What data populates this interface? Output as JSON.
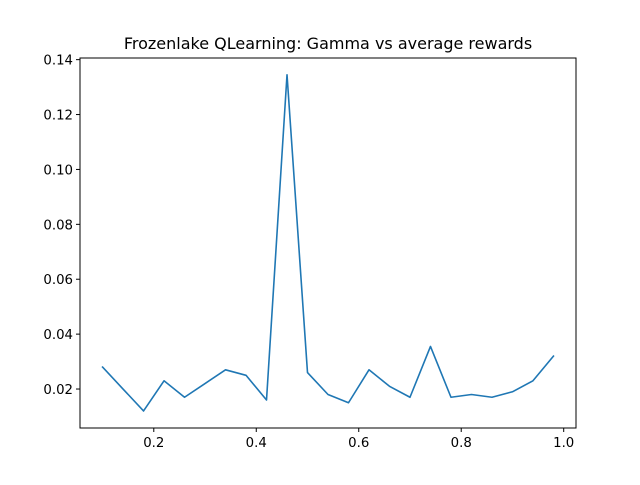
{
  "chart_data": {
    "type": "line",
    "title": "Frozenlake QLearning: Gamma vs average rewards",
    "xlabel": "",
    "ylabel": "",
    "xlim": [
      0.056,
      1.024
    ],
    "ylim": [
      0.0058,
      0.1406
    ],
    "xticks": [
      0.2,
      0.4,
      0.6,
      0.8,
      1.0
    ],
    "xtick_labels": [
      "0.2",
      "0.4",
      "0.6",
      "0.8",
      "1.0"
    ],
    "yticks": [
      0.02,
      0.04,
      0.06,
      0.08,
      0.1,
      0.12,
      0.14
    ],
    "ytick_labels": [
      "0.02",
      "0.04",
      "0.06",
      "0.08",
      "0.10",
      "0.12",
      "0.14"
    ],
    "grid": false,
    "series": [
      {
        "color": "#1f77b4",
        "x": [
          0.1,
          0.14,
          0.18,
          0.22,
          0.26,
          0.3,
          0.34,
          0.38,
          0.42,
          0.46,
          0.5,
          0.54,
          0.58,
          0.62,
          0.66,
          0.7,
          0.74,
          0.78,
          0.82,
          0.86,
          0.9,
          0.94,
          0.98
        ],
        "y": [
          0.028,
          0.02,
          0.012,
          0.023,
          0.017,
          0.022,
          0.027,
          0.025,
          0.016,
          0.1345,
          0.026,
          0.018,
          0.015,
          0.027,
          0.021,
          0.017,
          0.0355,
          0.017,
          0.018,
          0.017,
          0.019,
          0.023,
          0.032
        ]
      }
    ]
  }
}
